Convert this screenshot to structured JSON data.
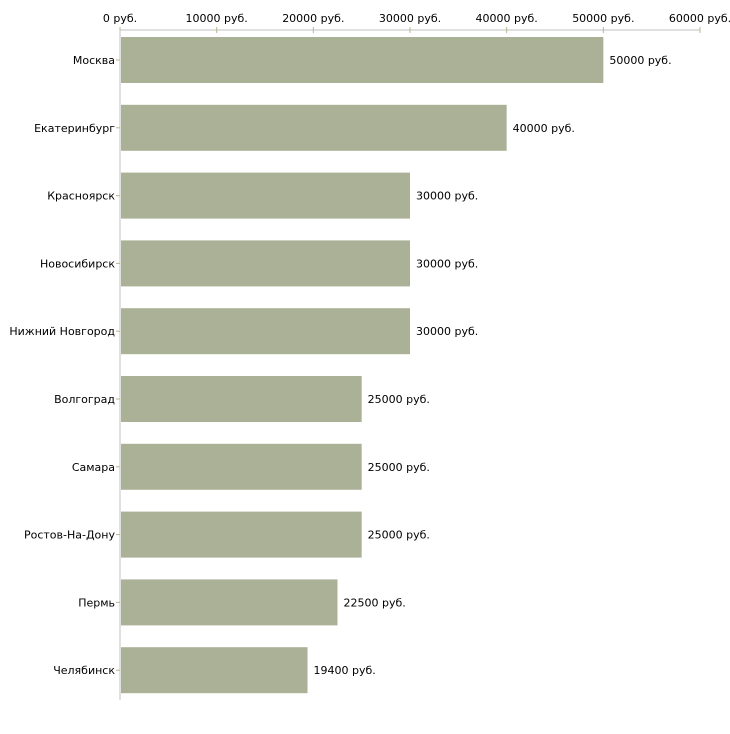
{
  "chart_data": {
    "type": "bar",
    "orientation": "horizontal",
    "title": "",
    "xlabel": "",
    "ylabel": "",
    "xlim": [
      0,
      60000
    ],
    "tick_values": [
      0,
      10000,
      20000,
      30000,
      40000,
      50000,
      60000
    ],
    "tick_labels": [
      "0 руб.",
      "10000 руб.",
      "20000 руб.",
      "30000 руб.",
      "40000 руб.",
      "50000 руб.",
      "60000 руб."
    ],
    "axis_position": "top",
    "grid": false,
    "categories": [
      "Москва",
      "Екатеринбург",
      "Красноярск",
      "Новосибирск",
      "Нижний Новгород",
      "Волгоград",
      "Самара",
      "Ростов-На-Дону",
      "Пермь",
      "Челябинск"
    ],
    "values": [
      50000,
      40000,
      30000,
      30000,
      30000,
      25000,
      25000,
      25000,
      22500,
      19400
    ],
    "value_labels": [
      "50000 руб.",
      "40000 руб.",
      "30000 руб.",
      "30000 руб.",
      "30000 руб.",
      "25000 руб.",
      "25000 руб.",
      "25000 руб.",
      "22500 руб.",
      "19400 руб."
    ],
    "colors": {
      "bar": "#abb197",
      "axis": "#c0c0c0",
      "tick": "#b5b98f"
    }
  }
}
